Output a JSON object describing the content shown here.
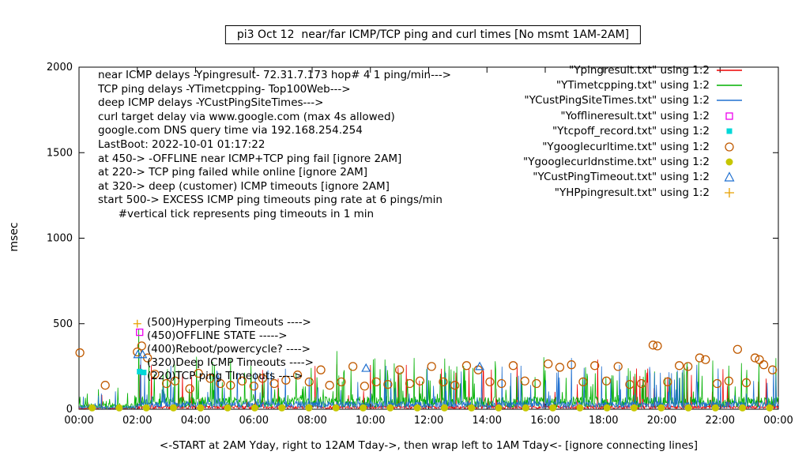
{
  "title": "pi3 Oct 12  near/far ICMP/TCP ping and curl times [No msmt 1AM-2AM]",
  "ylabel": "msec",
  "xlabel": "<-START at 2AM Yday, right to 12AM Tday->, then wrap left to 1AM Tday<- [ignore connecting lines]",
  "annotations": {
    "info_lines": [
      "near ICMP delays -Ypingresult- 72.31.7.173 hop# 4 1 ping/min--->",
      "TCP ping delays -YTimetcpping- Top100Web--->",
      "deep ICMP delays -YCustPingSiteTimes--->",
      "curl target delay via www.google.com (max 4s allowed)",
      "google.com DNS query time via 192.168.254.254",
      "LastBoot: 2022-10-01 01:17:22",
      "at 450-> -OFFLINE near ICMP+TCP ping fail [ignore 2AM]",
      "at 220-> TCP ping failed while online [ignore 2AM]",
      "at 320-> deep (customer) ICMP timeouts [ignore 2AM]",
      "start 500-> EXCESS ICMP ping timeouts ping rate at 6 pings/min",
      "      #vertical tick represents ping timeouts in 1 min"
    ],
    "event_labels": [
      {
        "text": "(500)Hyperping Timeouts ---->",
        "y": 500
      },
      {
        "text": "(450)OFFLINE STATE ----->",
        "y": 450
      },
      {
        "text": "(400)Reboot/powercycle? ---->",
        "y": 400
      },
      {
        "text": "(320)Deep ICMP Timeouts ---->",
        "y": 320
      },
      {
        "text": "(220)TCP ping TImeouts ---->",
        "y": 220
      }
    ]
  },
  "legend": [
    {
      "label": "\"Ypingresult.txt\" using 1:2",
      "marker": "line",
      "color": "#ee0000"
    },
    {
      "label": "\"YTimetcpping.txt\" using 1:2",
      "marker": "line",
      "color": "#00b000"
    },
    {
      "label": "\"YCustPingSiteTimes.txt\" using 1:2",
      "marker": "line",
      "color": "#2070d0"
    },
    {
      "label": "\"Yofflineresult.txt\" using 1:2",
      "marker": "open-square",
      "color": "#ee00ee"
    },
    {
      "label": "\"Ytcpoff_record.txt\" using 1:2",
      "marker": "filled-square",
      "color": "#00d8d8"
    },
    {
      "label": "\"Ygooglecurltime.txt\" using 1:2",
      "marker": "open-circle",
      "color": "#c05a00"
    },
    {
      "label": "\"Ygooglecurldnstime.txt\" using 1:2",
      "marker": "filled-circle",
      "color": "#c6c600"
    },
    {
      "label": "\"YCustPingTimeout.txt\" using 1:2",
      "marker": "open-triangle",
      "color": "#2070d0"
    },
    {
      "label": "\"YHPpingresult.txt\" using 1:2",
      "marker": "plus",
      "color": "#e8a000"
    }
  ],
  "chart_data": {
    "type": "line",
    "title": "pi3 Oct 12  near/far ICMP/TCP ping and curl times [No msmt 1AM-2AM]",
    "xlabel": "<-START at 2AM Yday, right to 12AM Tday->, then wrap left to 1AM Tday<- [ignore connecting lines]",
    "ylabel": "msec",
    "ylim": [
      0,
      2000
    ],
    "xlim_hours": [
      0,
      24
    ],
    "grid": false,
    "legend_position": "top-right",
    "x_ticks": [
      "00:00",
      "02:00",
      "04:00",
      "06:00",
      "08:00",
      "10:00",
      "12:00",
      "14:00",
      "16:00",
      "18:00",
      "20:00",
      "22:00",
      "00:00"
    ],
    "y_ticks": [
      0,
      500,
      1000,
      1500,
      2000
    ],
    "series": [
      {
        "name": "Ypingresult.txt",
        "style": "line",
        "color": "#ee0000",
        "baseline": 12,
        "jitter": 9,
        "spike_prob": 0.045,
        "spike_min": 50,
        "spike_max": 270,
        "seed": 7,
        "events": [
          [
            2.1,
            260
          ],
          [
            17.8,
            290
          ]
        ]
      },
      {
        "name": "YTimetcpping.txt",
        "style": "line",
        "color": "#00b000",
        "baseline": 42,
        "jitter": 32,
        "spike_prob": 0.1,
        "spike_min": 80,
        "spike_max": 310,
        "seed": 13,
        "events": [
          [
            2.05,
            470
          ],
          [
            8.85,
            340
          ],
          [
            11.5,
            300
          ]
        ]
      },
      {
        "name": "YCustPingSiteTimes.txt",
        "style": "line",
        "color": "#2070d0",
        "baseline": 26,
        "jitter": 20,
        "spike_prob": 0.075,
        "spike_min": 60,
        "spike_max": 270,
        "seed": 21,
        "events": [
          [
            2.12,
            300
          ],
          [
            16.9,
            300
          ],
          [
            21.2,
            260
          ]
        ]
      },
      {
        "name": "Yofflineresult.txt",
        "style": "open-square",
        "color": "#ee00ee",
        "points": [
          [
            2.08,
            450
          ]
        ]
      },
      {
        "name": "Ytcpoff_record.txt",
        "style": "filled-square",
        "color": "#00d8d8",
        "points": [
          [
            2.08,
            220
          ],
          [
            2.22,
            215
          ]
        ]
      },
      {
        "name": "Ygooglecurltime.txt",
        "style": "open-circle",
        "color": "#c05a00",
        "points": [
          [
            0.03,
            330
          ],
          [
            0.9,
            140
          ],
          [
            2.0,
            335
          ],
          [
            2.15,
            370
          ],
          [
            2.35,
            300
          ],
          [
            2.6,
            205
          ],
          [
            3.0,
            150
          ],
          [
            3.3,
            165
          ],
          [
            3.8,
            120
          ],
          [
            4.1,
            210
          ],
          [
            4.5,
            180
          ],
          [
            4.85,
            150
          ],
          [
            5.2,
            140
          ],
          [
            5.6,
            165
          ],
          [
            6.0,
            135
          ],
          [
            6.3,
            180
          ],
          [
            6.7,
            150
          ],
          [
            7.1,
            170
          ],
          [
            7.5,
            200
          ],
          [
            7.9,
            160
          ],
          [
            8.3,
            230
          ],
          [
            8.6,
            140
          ],
          [
            9.0,
            160
          ],
          [
            9.4,
            250
          ],
          [
            9.8,
            135
          ],
          [
            10.2,
            160
          ],
          [
            10.6,
            145
          ],
          [
            11.0,
            230
          ],
          [
            11.35,
            150
          ],
          [
            11.7,
            165
          ],
          [
            12.1,
            250
          ],
          [
            12.5,
            160
          ],
          [
            12.9,
            140
          ],
          [
            13.3,
            255
          ],
          [
            13.7,
            230
          ],
          [
            14.1,
            160
          ],
          [
            14.5,
            150
          ],
          [
            14.9,
            255
          ],
          [
            15.3,
            165
          ],
          [
            15.7,
            150
          ],
          [
            16.1,
            265
          ],
          [
            16.5,
            245
          ],
          [
            16.9,
            260
          ],
          [
            17.3,
            160
          ],
          [
            17.7,
            255
          ],
          [
            18.1,
            165
          ],
          [
            18.5,
            250
          ],
          [
            18.9,
            145
          ],
          [
            19.3,
            150
          ],
          [
            19.7,
            375
          ],
          [
            19.85,
            370
          ],
          [
            20.2,
            160
          ],
          [
            20.6,
            255
          ],
          [
            20.9,
            250
          ],
          [
            21.3,
            300
          ],
          [
            21.5,
            290
          ],
          [
            21.9,
            150
          ],
          [
            22.3,
            165
          ],
          [
            22.6,
            350
          ],
          [
            22.9,
            155
          ],
          [
            23.2,
            300
          ],
          [
            23.35,
            290
          ],
          [
            23.5,
            260
          ],
          [
            23.8,
            230
          ]
        ]
      },
      {
        "name": "Ygooglecurldnstime.txt",
        "style": "filled-circle",
        "color": "#c6c600",
        "points": [
          [
            0.45,
            8
          ],
          [
            1.38,
            8
          ],
          [
            2.31,
            8
          ],
          [
            3.24,
            8
          ],
          [
            4.17,
            8
          ],
          [
            5.1,
            8
          ],
          [
            6.03,
            8
          ],
          [
            6.96,
            8
          ],
          [
            7.89,
            8
          ],
          [
            8.82,
            8
          ],
          [
            9.75,
            8
          ],
          [
            10.68,
            8
          ],
          [
            11.61,
            8
          ],
          [
            12.54,
            8
          ],
          [
            13.47,
            8
          ],
          [
            14.4,
            8
          ],
          [
            15.33,
            8
          ],
          [
            16.26,
            8
          ],
          [
            17.19,
            8
          ],
          [
            18.12,
            8
          ],
          [
            19.05,
            8
          ],
          [
            19.98,
            8
          ],
          [
            20.91,
            8
          ],
          [
            21.84,
            8
          ],
          [
            22.77,
            8
          ],
          [
            23.7,
            8
          ]
        ]
      },
      {
        "name": "YCustPingTimeout.txt",
        "style": "open-triangle",
        "color": "#2070d0",
        "points": [
          [
            2.02,
            320
          ],
          [
            2.18,
            320
          ],
          [
            9.85,
            240
          ],
          [
            13.75,
            250
          ]
        ]
      },
      {
        "name": "YHPpingresult.txt",
        "style": "plus",
        "color": "#e8a000",
        "points": [
          [
            2.0,
            500
          ]
        ]
      }
    ]
  }
}
